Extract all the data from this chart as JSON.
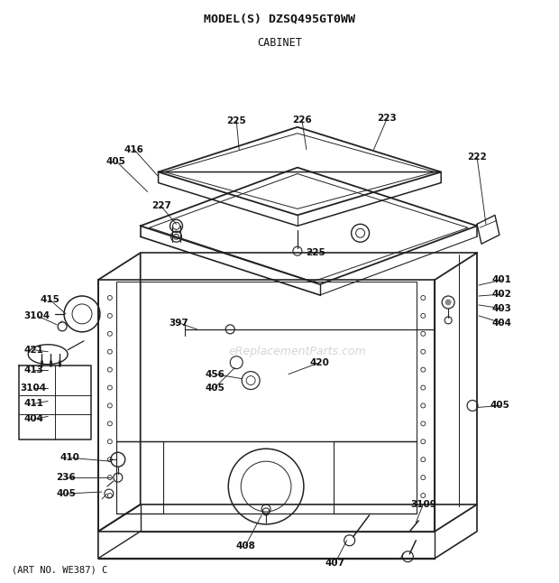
{
  "title": "MODEL(S) DZSQ495GT0WW",
  "subtitle": "CABINET",
  "footer": "(ART NO. WE387) C",
  "bg_color": "#ffffff",
  "line_color": "#222222",
  "text_color": "#111111",
  "watermark": "eReplacementParts.com"
}
